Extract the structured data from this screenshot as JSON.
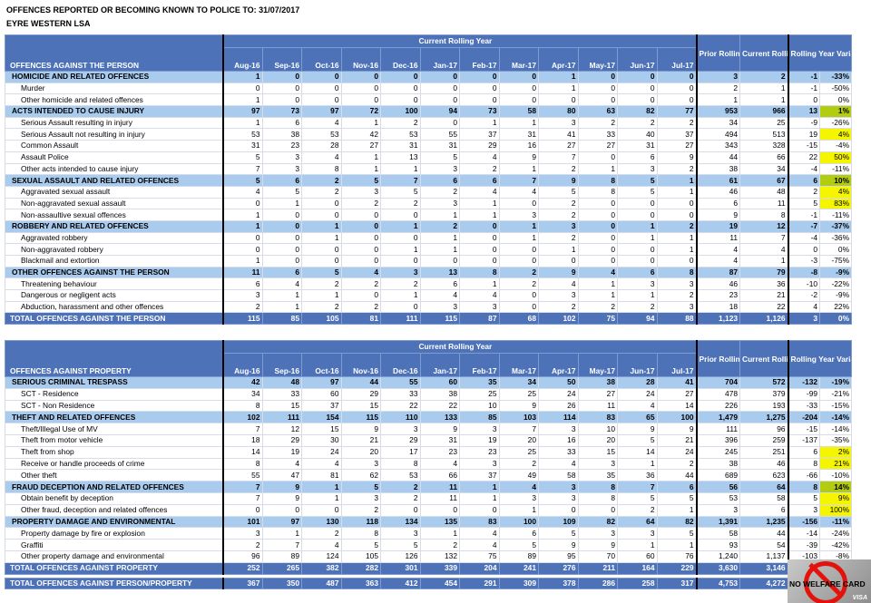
{
  "header": {
    "title": "OFFENCES REPORTED OR BECOMING KNOWN TO POLICE TO: 31/07/2017",
    "subtitle": "EYRE WESTERN LSA"
  },
  "columns": {
    "current_rolling_year": "Current Rolling Year",
    "months": [
      "Aug-16",
      "Sep-16",
      "Oct-16",
      "Nov-16",
      "Dec-16",
      "Jan-17",
      "Feb-17",
      "Mar-17",
      "Apr-17",
      "May-17",
      "Jun-17",
      "Jul-17"
    ],
    "prior": "Prior Rolling Year",
    "current": "Current Rolling Year",
    "variance": "Rolling Year Variance"
  },
  "colors": {
    "header_blue": "#4e72b8",
    "group_blue": "#a9cbee",
    "highlight": "#f5f500"
  },
  "tables": [
    {
      "heading": "OFFENCES AGAINST THE PERSON",
      "rows": [
        {
          "type": "group",
          "label": "HOMICIDE AND RELATED OFFENCES",
          "m": [
            1,
            0,
            0,
            0,
            0,
            0,
            0,
            0,
            1,
            0,
            0,
            0
          ],
          "prior": "3",
          "current": "2",
          "var": "-1",
          "pct": "-33%"
        },
        {
          "type": "item",
          "label": "Murder",
          "m": [
            0,
            0,
            0,
            0,
            0,
            0,
            0,
            0,
            1,
            0,
            0,
            0
          ],
          "prior": "2",
          "current": "1",
          "var": "-1",
          "pct": "-50%"
        },
        {
          "type": "item",
          "label": "Other homicide and related offences",
          "m": [
            1,
            0,
            0,
            0,
            0,
            0,
            0,
            0,
            0,
            0,
            0,
            0
          ],
          "prior": "1",
          "current": "1",
          "var": "0",
          "pct": "0%"
        },
        {
          "type": "group",
          "label": "ACTS INTENDED TO CAUSE INJURY",
          "m": [
            97,
            73,
            97,
            72,
            100,
            94,
            73,
            58,
            80,
            63,
            82,
            77
          ],
          "prior": "953",
          "current": "966",
          "var": "13",
          "pct": "1%",
          "hl": true
        },
        {
          "type": "item",
          "label": "Serious Assault resulting in injury",
          "m": [
            1,
            6,
            4,
            1,
            2,
            0,
            1,
            1,
            3,
            2,
            2,
            2
          ],
          "prior": "34",
          "current": "25",
          "var": "-9",
          "pct": "-26%"
        },
        {
          "type": "item",
          "label": "Serious Assault not resulting in injury",
          "m": [
            53,
            38,
            53,
            42,
            53,
            55,
            37,
            31,
            41,
            33,
            40,
            37
          ],
          "prior": "494",
          "current": "513",
          "var": "19",
          "pct": "4%",
          "hl": true
        },
        {
          "type": "item",
          "label": "Common Assault",
          "m": [
            31,
            23,
            28,
            27,
            31,
            31,
            29,
            16,
            27,
            27,
            31,
            27
          ],
          "prior": "343",
          "current": "328",
          "var": "-15",
          "pct": "-4%"
        },
        {
          "type": "item",
          "label": "Assault Police",
          "m": [
            5,
            3,
            4,
            1,
            13,
            5,
            4,
            9,
            7,
            0,
            6,
            9
          ],
          "prior": "44",
          "current": "66",
          "var": "22",
          "pct": "50%",
          "hl": true
        },
        {
          "type": "item",
          "label": "Other acts intended to cause injury",
          "m": [
            7,
            3,
            8,
            1,
            1,
            3,
            2,
            1,
            2,
            1,
            3,
            2
          ],
          "prior": "38",
          "current": "34",
          "var": "-4",
          "pct": "-11%"
        },
        {
          "type": "group",
          "label": "SEXUAL ASSAULT AND RELATED OFFENCES",
          "m": [
            5,
            6,
            2,
            5,
            7,
            6,
            6,
            7,
            9,
            8,
            5,
            1
          ],
          "prior": "61",
          "current": "67",
          "var": "6",
          "pct": "10%",
          "hl": true
        },
        {
          "type": "item",
          "label": "Aggravated sexual assault",
          "m": [
            4,
            5,
            2,
            3,
            5,
            2,
            4,
            4,
            5,
            8,
            5,
            1
          ],
          "prior": "46",
          "current": "48",
          "var": "2",
          "pct": "4%",
          "hl": true
        },
        {
          "type": "item",
          "label": "Non-aggravated sexual assault",
          "m": [
            0,
            1,
            0,
            2,
            2,
            3,
            1,
            0,
            2,
            0,
            0,
            0
          ],
          "prior": "6",
          "current": "11",
          "var": "5",
          "pct": "83%",
          "hl": true
        },
        {
          "type": "item",
          "label": "Non-assaultive sexual offences",
          "m": [
            1,
            0,
            0,
            0,
            0,
            1,
            1,
            3,
            2,
            0,
            0,
            0
          ],
          "prior": "9",
          "current": "8",
          "var": "-1",
          "pct": "-11%"
        },
        {
          "type": "group",
          "label": "ROBBERY AND RELATED OFFENCES",
          "m": [
            1,
            0,
            1,
            0,
            1,
            2,
            0,
            1,
            3,
            0,
            1,
            2
          ],
          "prior": "19",
          "current": "12",
          "var": "-7",
          "pct": "-37%"
        },
        {
          "type": "item",
          "label": "Aggravated robbery",
          "m": [
            0,
            0,
            1,
            0,
            0,
            1,
            0,
            1,
            2,
            0,
            1,
            1
          ],
          "prior": "11",
          "current": "7",
          "var": "-4",
          "pct": "-36%"
        },
        {
          "type": "item",
          "label": "Non-aggravated robbery",
          "m": [
            0,
            0,
            0,
            0,
            1,
            1,
            0,
            0,
            1,
            0,
            0,
            1
          ],
          "prior": "4",
          "current": "4",
          "var": "0",
          "pct": "0%"
        },
        {
          "type": "item",
          "label": "Blackmail and extortion",
          "m": [
            1,
            0,
            0,
            0,
            0,
            0,
            0,
            0,
            0,
            0,
            0,
            0
          ],
          "prior": "4",
          "current": "1",
          "var": "-3",
          "pct": "-75%"
        },
        {
          "type": "group",
          "label": "OTHER OFFENCES AGAINST THE PERSON",
          "m": [
            11,
            6,
            5,
            4,
            3,
            13,
            8,
            2,
            9,
            4,
            6,
            8
          ],
          "prior": "87",
          "current": "79",
          "var": "-8",
          "pct": "-9%"
        },
        {
          "type": "item",
          "label": "Threatening behaviour",
          "m": [
            6,
            4,
            2,
            2,
            2,
            6,
            1,
            2,
            4,
            1,
            3,
            3
          ],
          "prior": "46",
          "current": "36",
          "var": "-10",
          "pct": "-22%"
        },
        {
          "type": "item",
          "label": "Dangerous or negligent acts",
          "m": [
            3,
            1,
            1,
            0,
            1,
            4,
            4,
            0,
            3,
            1,
            1,
            2
          ],
          "prior": "23",
          "current": "21",
          "var": "-2",
          "pct": "-9%"
        },
        {
          "type": "item",
          "label": "Abduction, harassment and other offences",
          "m": [
            2,
            1,
            2,
            2,
            0,
            3,
            3,
            0,
            2,
            2,
            2,
            3
          ],
          "prior": "18",
          "current": "22",
          "var": "4",
          "pct": "22%"
        },
        {
          "type": "total",
          "label": "TOTAL OFFENCES AGAINST THE PERSON",
          "m": [
            115,
            85,
            105,
            81,
            111,
            115,
            87,
            68,
            102,
            75,
            94,
            88
          ],
          "prior": "1,123",
          "current": "1,126",
          "var": "3",
          "pct": "0%"
        }
      ]
    },
    {
      "heading": "OFFENCES AGAINST PROPERTY",
      "rows": [
        {
          "type": "group",
          "label": "SERIOUS CRIMINAL TRESPASS",
          "m": [
            42,
            48,
            97,
            44,
            55,
            60,
            35,
            34,
            50,
            38,
            28,
            41
          ],
          "prior": "704",
          "current": "572",
          "var": "-132",
          "pct": "-19%"
        },
        {
          "type": "item",
          "label": "SCT - Residence",
          "m": [
            34,
            33,
            60,
            29,
            33,
            38,
            25,
            25,
            24,
            27,
            24,
            27
          ],
          "prior": "478",
          "current": "379",
          "var": "-99",
          "pct": "-21%"
        },
        {
          "type": "item",
          "label": "SCT - Non Residence",
          "m": [
            8,
            15,
            37,
            15,
            22,
            22,
            10,
            9,
            26,
            11,
            4,
            14
          ],
          "prior": "226",
          "current": "193",
          "var": "-33",
          "pct": "-15%"
        },
        {
          "type": "group",
          "label": "THEFT AND RELATED OFFENCES",
          "m": [
            102,
            111,
            154,
            115,
            110,
            133,
            85,
            103,
            114,
            83,
            65,
            100
          ],
          "prior": "1,479",
          "current": "1,275",
          "var": "-204",
          "pct": "-14%"
        },
        {
          "type": "item",
          "label": "Theft/Illegal Use of MV",
          "m": [
            7,
            12,
            15,
            9,
            3,
            9,
            3,
            7,
            3,
            10,
            9,
            9
          ],
          "prior": "111",
          "current": "96",
          "var": "-15",
          "pct": "-14%"
        },
        {
          "type": "item",
          "label": "Theft from motor vehicle",
          "m": [
            18,
            29,
            30,
            21,
            29,
            31,
            19,
            20,
            16,
            20,
            5,
            21
          ],
          "prior": "396",
          "current": "259",
          "var": "-137",
          "pct": "-35%"
        },
        {
          "type": "item",
          "label": "Theft from shop",
          "m": [
            14,
            19,
            24,
            20,
            17,
            23,
            23,
            25,
            33,
            15,
            14,
            24
          ],
          "prior": "245",
          "current": "251",
          "var": "6",
          "pct": "2%",
          "hl": true
        },
        {
          "type": "item",
          "label": "Receive or handle proceeds of crime",
          "m": [
            8,
            4,
            4,
            3,
            8,
            4,
            3,
            2,
            4,
            3,
            1,
            2
          ],
          "prior": "38",
          "current": "46",
          "var": "8",
          "pct": "21%",
          "hl": true
        },
        {
          "type": "item",
          "label": "Other theft",
          "m": [
            55,
            47,
            81,
            62,
            53,
            66,
            37,
            49,
            58,
            35,
            36,
            44
          ],
          "prior": "689",
          "current": "623",
          "var": "-66",
          "pct": "-10%"
        },
        {
          "type": "group",
          "label": "FRAUD DECEPTION AND RELATED OFFENCES",
          "m": [
            7,
            9,
            1,
            5,
            2,
            11,
            1,
            4,
            3,
            8,
            7,
            6
          ],
          "prior": "56",
          "current": "64",
          "var": "8",
          "pct": "14%",
          "hl": true
        },
        {
          "type": "item",
          "label": "Obtain benefit by deception",
          "m": [
            7,
            9,
            1,
            3,
            2,
            11,
            1,
            3,
            3,
            8,
            5,
            5
          ],
          "prior": "53",
          "current": "58",
          "var": "5",
          "pct": "9%",
          "hl": true
        },
        {
          "type": "item",
          "label": "Other fraud, deception and related offences",
          "m": [
            0,
            0,
            0,
            2,
            0,
            0,
            0,
            1,
            0,
            0,
            2,
            1
          ],
          "prior": "3",
          "current": "6",
          "var": "3",
          "pct": "100%",
          "hl": true
        },
        {
          "type": "group",
          "label": "PROPERTY DAMAGE AND ENVIRONMENTAL",
          "m": [
            101,
            97,
            130,
            118,
            134,
            135,
            83,
            100,
            109,
            82,
            64,
            82
          ],
          "prior": "1,391",
          "current": "1,235",
          "var": "-156",
          "pct": "-11%"
        },
        {
          "type": "item",
          "label": "Property damage by fire or explosion",
          "m": [
            3,
            1,
            2,
            8,
            3,
            1,
            4,
            6,
            5,
            3,
            3,
            5
          ],
          "prior": "58",
          "current": "44",
          "var": "-14",
          "pct": "-24%"
        },
        {
          "type": "item",
          "label": "Graffiti",
          "m": [
            2,
            7,
            4,
            5,
            5,
            2,
            4,
            5,
            9,
            9,
            1,
            1
          ],
          "prior": "93",
          "current": "54",
          "var": "-39",
          "pct": "-42%"
        },
        {
          "type": "item",
          "label": "Other property damage and environmental",
          "m": [
            96,
            89,
            124,
            105,
            126,
            132,
            75,
            89,
            95,
            70,
            60,
            76
          ],
          "prior": "1,240",
          "current": "1,137",
          "var": "-103",
          "pct": "-8%"
        },
        {
          "type": "total",
          "label": "TOTAL OFFENCES AGAINST PROPERTY",
          "m": [
            252,
            265,
            382,
            282,
            301,
            339,
            204,
            241,
            276,
            211,
            164,
            229
          ],
          "prior": "3,630",
          "current": "3,146",
          "var": "",
          "pct": ""
        },
        {
          "type": "total",
          "label": "TOTAL OFFENCES AGAINST PERSON/PROPERTY",
          "m": [
            367,
            350,
            487,
            363,
            412,
            454,
            291,
            309,
            378,
            286,
            258,
            317
          ],
          "prior": "4,753",
          "current": "4,272",
          "var": "",
          "pct": "",
          "gap": true
        }
      ]
    }
  ],
  "overlay": {
    "text": "NO WELFARE CARD",
    "brand": "VISA",
    "icon": "prohibited-icon"
  }
}
